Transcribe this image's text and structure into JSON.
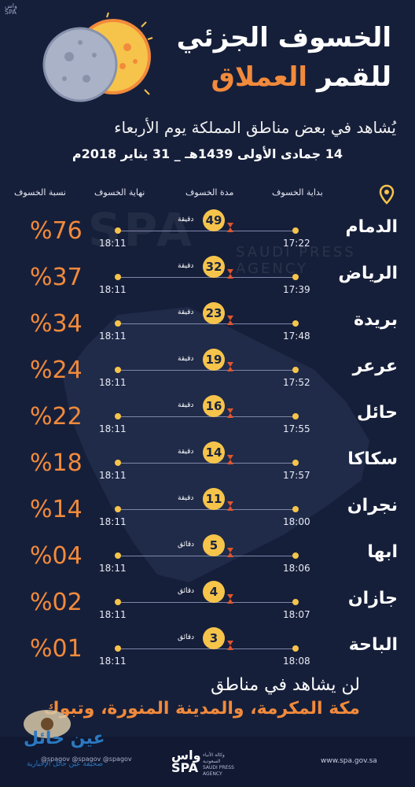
{
  "header": {
    "agency_mini": "واس\nSPA",
    "title_line1": "الخسوف الجزئي",
    "title_line2_a": "للقمر",
    "title_line2_b": "العملاق",
    "subtitle": "يُشاهد في بعض مناطق المملكة يوم الأربعاء",
    "date": "14 جمادى الأولى 1439هـ _ 31 يناير 2018م"
  },
  "columns": {
    "start": "بداية الخسوف",
    "duration": "مدة الخسوف",
    "end": "نهاية الخسوف",
    "percent": "نسبة الخسوف"
  },
  "rows": [
    {
      "city": "الدمام",
      "start": "17:22",
      "duration": "49",
      "unit": "دقيقة",
      "end": "18:11",
      "percent": "%76"
    },
    {
      "city": "الرياض",
      "start": "17:39",
      "duration": "32",
      "unit": "دقيقة",
      "end": "18:11",
      "percent": "%37"
    },
    {
      "city": "بريدة",
      "start": "17:48",
      "duration": "23",
      "unit": "دقيقة",
      "end": "18:11",
      "percent": "%34"
    },
    {
      "city": "عرعر",
      "start": "17:52",
      "duration": "19",
      "unit": "دقيقة",
      "end": "18:11",
      "percent": "%24"
    },
    {
      "city": "حائل",
      "start": "17:55",
      "duration": "16",
      "unit": "دقيقة",
      "end": "18:11",
      "percent": "%22"
    },
    {
      "city": "سكاكا",
      "start": "17:57",
      "duration": "14",
      "unit": "دقيقة",
      "end": "18:11",
      "percent": "%18"
    },
    {
      "city": "نجران",
      "start": "18:00",
      "duration": "11",
      "unit": "دقيقة",
      "end": "18:11",
      "percent": "%14"
    },
    {
      "city": "ابها",
      "start": "18:06",
      "duration": "5",
      "unit": "دقائق",
      "end": "18:11",
      "percent": "%04"
    },
    {
      "city": "جازان",
      "start": "18:07",
      "duration": "4",
      "unit": "دقائق",
      "end": "18:11",
      "percent": "%02"
    },
    {
      "city": "الباحة",
      "start": "18:08",
      "duration": "3",
      "unit": "دقائق",
      "end": "18:11",
      "percent": "%01"
    }
  ],
  "footer": {
    "line1": "لن يشاهد في مناطق",
    "line2": "مكة المكرمة، والمدينة المنورة، وتبوك",
    "website": "www.spa.gov.sa",
    "spa_logo": "واس\nSPA",
    "spa_sub": "وكالة الأنباء\nالسعودية\nSAUDI PRESS\nAGENCY",
    "social": "@spagov  @spagov  @spagov",
    "overlay_logo": "عين حائل",
    "overlay_sub": "صحيفة عين حائل الإخبارية"
  },
  "watermark": {
    "logo": "SPA",
    "text": "SAUDI PRESS AGENCY"
  },
  "colors": {
    "background": "#161f3a",
    "accent_orange": "#f28a3b",
    "accent_yellow": "#f6c44a",
    "text": "#ffffff"
  },
  "icons": {
    "moon": "eclipse-moon-icon",
    "pin": "location-pin-icon",
    "hourglass": "hourglass-icon"
  }
}
